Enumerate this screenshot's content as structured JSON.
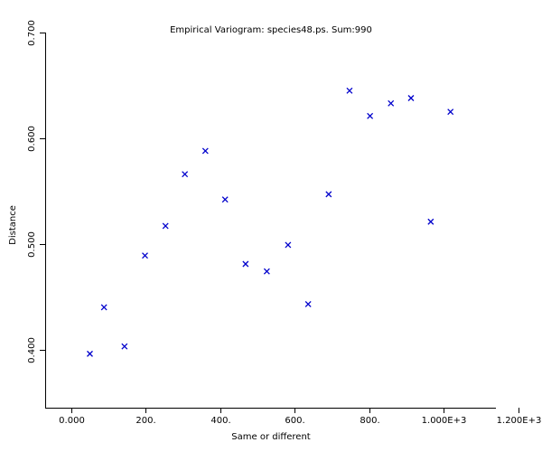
{
  "chart_data": {
    "type": "scatter",
    "title": "Empirical Variogram: species48.ps. Sum:990",
    "xlabel": "Same or different",
    "ylabel": "Distance",
    "xlim": [
      -70,
      1140
    ],
    "ylim": [
      0.345,
      0.7
    ],
    "x_ticks": [
      {
        "value": 0,
        "label": "0.000"
      },
      {
        "value": 200,
        "label": "200."
      },
      {
        "value": 400,
        "label": "400."
      },
      {
        "value": 600,
        "label": "600."
      },
      {
        "value": 800,
        "label": "800."
      },
      {
        "value": 1000,
        "label": "1.000E+3"
      },
      {
        "value": 1200,
        "label": "1.200E+3"
      }
    ],
    "y_ticks": [
      {
        "value": 0.4,
        "label": "0.400"
      },
      {
        "value": 0.5,
        "label": "0.500"
      },
      {
        "value": 0.6,
        "label": "0.600"
      },
      {
        "value": 0.7,
        "label": "0.700"
      }
    ],
    "grid": false,
    "marker": "x",
    "marker_color": "#0000cc",
    "series": [
      {
        "points": [
          {
            "x": 50,
            "y": 0.396
          },
          {
            "x": 88,
            "y": 0.44
          },
          {
            "x": 143,
            "y": 0.403
          },
          {
            "x": 198,
            "y": 0.489
          },
          {
            "x": 253,
            "y": 0.517
          },
          {
            "x": 305,
            "y": 0.566
          },
          {
            "x": 360,
            "y": 0.588
          },
          {
            "x": 413,
            "y": 0.542
          },
          {
            "x": 468,
            "y": 0.481
          },
          {
            "x": 525,
            "y": 0.474
          },
          {
            "x": 582,
            "y": 0.499
          },
          {
            "x": 636,
            "y": 0.443
          },
          {
            "x": 691,
            "y": 0.547
          },
          {
            "x": 747,
            "y": 0.645
          },
          {
            "x": 802,
            "y": 0.621
          },
          {
            "x": 858,
            "y": 0.633
          },
          {
            "x": 912,
            "y": 0.638
          },
          {
            "x": 965,
            "y": 0.521
          },
          {
            "x": 1018,
            "y": 0.625
          }
        ]
      }
    ]
  }
}
